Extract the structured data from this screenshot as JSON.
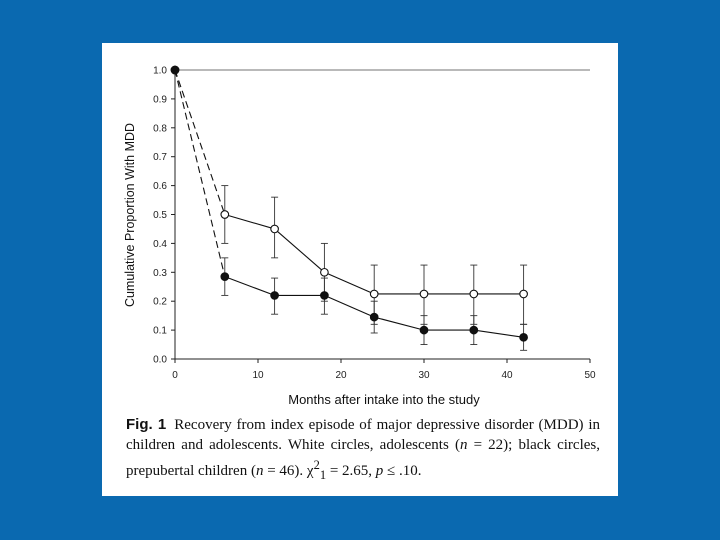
{
  "chart_data": {
    "type": "line",
    "title": "",
    "xlabel": "Months after intake into the study",
    "ylabel": "Cumulative Proportion With MDD",
    "xlim": [
      0,
      50
    ],
    "ylim": [
      0.0,
      1.0
    ],
    "xticks": [
      0,
      10,
      20,
      30,
      40,
      50
    ],
    "xtick_labels": [
      "0",
      "10",
      "20",
      "30",
      "40",
      "50"
    ],
    "yticks": [
      0.0,
      0.1,
      0.2,
      0.3,
      0.4,
      0.5,
      0.6,
      0.7,
      0.8,
      0.9,
      1.0
    ],
    "ytick_labels": [
      "0.0",
      "0.1",
      "0.2",
      "0.3",
      "0.4",
      "0.5",
      "0.6",
      "0.7",
      "0.8",
      "0.9",
      "1.0"
    ],
    "grid": false,
    "series": [
      {
        "name": "adolescents",
        "marker": "open-circle",
        "color": "#111111",
        "x": [
          0,
          6,
          12,
          18,
          24,
          30,
          36,
          42
        ],
        "y": [
          1.0,
          0.5,
          0.45,
          0.3,
          0.225,
          0.225,
          0.225,
          0.225
        ],
        "err_low": [
          null,
          0.4,
          0.35,
          0.2,
          0.12,
          0.12,
          0.12,
          0.12
        ],
        "err_high": [
          null,
          0.6,
          0.56,
          0.4,
          0.325,
          0.325,
          0.325,
          0.325
        ]
      },
      {
        "name": "prepubertal children",
        "marker": "filled-circle",
        "color": "#111111",
        "x": [
          0,
          6,
          12,
          18,
          24,
          30,
          36,
          42
        ],
        "y": [
          1.0,
          0.285,
          0.22,
          0.22,
          0.145,
          0.1,
          0.1,
          0.075
        ],
        "err_low": [
          null,
          0.22,
          0.155,
          0.155,
          0.09,
          0.05,
          0.05,
          0.03
        ],
        "err_high": [
          null,
          0.35,
          0.28,
          0.28,
          0.2,
          0.15,
          0.15,
          0.12
        ]
      }
    ]
  },
  "caption": {
    "label": "Fig. 1",
    "text_1": "Recovery from index episode of major depressive disorder (MDD) in children and adolescents. White circles, adolescents (",
    "n_symbol_1": "n",
    "text_2": " = 22); black circles, prepubertal children (",
    "n_symbol_2": "n",
    "text_3": " = 46). χ",
    "chi_exponent": "2",
    "chi_subscript": "1",
    "text_4": " = 2.65, ",
    "p_symbol": "p",
    "text_5": " ≤ .10."
  }
}
